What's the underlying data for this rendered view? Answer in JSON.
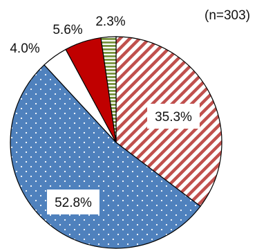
{
  "chart_data": {
    "type": "pie",
    "title": "",
    "annotation": "(n=303)",
    "slices": [
      {
        "value": 35.3,
        "label": "35.3%",
        "color": "#c0504d",
        "pattern": "diagonal-stripes"
      },
      {
        "value": 52.8,
        "label": "52.8%",
        "color": "#4f81bd",
        "pattern": "dots"
      },
      {
        "value": 4.0,
        "label": "4.0%",
        "color": "#ffffff",
        "pattern": "none"
      },
      {
        "value": 5.6,
        "label": "5.6%",
        "color": "#c00000",
        "pattern": "none"
      },
      {
        "value": 2.3,
        "label": "2.3%",
        "color": "#76923c",
        "pattern": "horizontal-stripes"
      }
    ]
  }
}
